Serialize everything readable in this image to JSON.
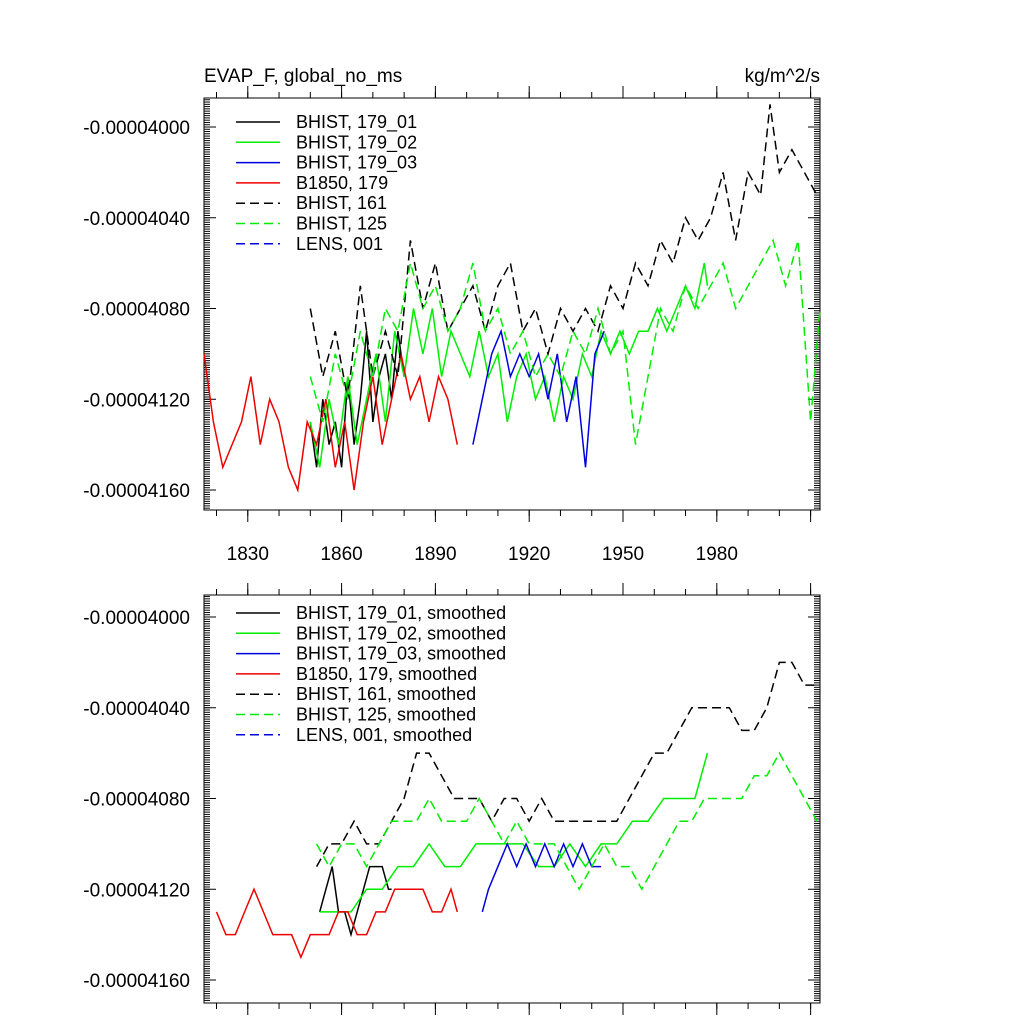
{
  "figure": {
    "title_left": "EVAP_F, global_no_ms",
    "title_right": "kg/m^2/s"
  },
  "chart_data": [
    {
      "type": "line",
      "panel": "top",
      "title": "EVAP_F, global_no_ms",
      "unit_label": "kg/m^2/s",
      "xlim": [
        1816,
        2013
      ],
      "ylim": [
        -4.17e-05,
        -3.99e-05
      ],
      "xticks": [
        1830,
        1860,
        1890,
        1920,
        1950,
        1980
      ],
      "xtick_labels": [
        "1830",
        "1860",
        "1890",
        "1920",
        "1950",
        "1980"
      ],
      "yticks": [
        -4e-05,
        -4.04e-05,
        -4.08e-05,
        -4.12e-05,
        -4.16e-05
      ],
      "ytick_labels": [
        "-0.00004000",
        "-0.00004040",
        "-0.00004080",
        "-0.00004120",
        "-0.00004160"
      ],
      "legend_position": "top-left",
      "series": [
        {
          "name": "BHIST, 179_01",
          "color": "#000000",
          "dash": "solid",
          "x": [
            1850,
            1852,
            1854,
            1856,
            1858,
            1860,
            1862,
            1864,
            1866,
            1868,
            1870,
            1872,
            1874,
            1876,
            1878,
            1880
          ],
          "y": [
            -4.13e-05,
            -4.15e-05,
            -4.12e-05,
            -4.14e-05,
            -4.13e-05,
            -4.15e-05,
            -4.11e-05,
            -4.14e-05,
            -4.12e-05,
            -4.09e-05,
            -4.13e-05,
            -4.11e-05,
            -4.1e-05,
            -4.12e-05,
            -4.09e-05,
            -4.11e-05
          ]
        },
        {
          "name": "BHIST, 179_02",
          "color": "#00ee00",
          "dash": "solid",
          "x": [
            1850,
            1853,
            1856,
            1859,
            1862,
            1865,
            1868,
            1871,
            1874,
            1877,
            1880,
            1883,
            1886,
            1889,
            1892,
            1895,
            1898,
            1901,
            1904,
            1907,
            1910,
            1913,
            1916,
            1919,
            1922,
            1925,
            1928,
            1931,
            1934,
            1937,
            1940,
            1943,
            1946,
            1949,
            1952,
            1955,
            1958,
            1961,
            1964,
            1967,
            1970,
            1973,
            1976,
            1977
          ],
          "y": [
            -4.13e-05,
            -4.15e-05,
            -4.12e-05,
            -4.14e-05,
            -4.11e-05,
            -4.14e-05,
            -4.12e-05,
            -4.1e-05,
            -4.13e-05,
            -4.09e-05,
            -4.11e-05,
            -4.08e-05,
            -4.1e-05,
            -4.08e-05,
            -4.11e-05,
            -4.09e-05,
            -4.1e-05,
            -4.11e-05,
            -4.09e-05,
            -4.11e-05,
            -4.1e-05,
            -4.13e-05,
            -4.11e-05,
            -4.1e-05,
            -4.12e-05,
            -4.11e-05,
            -4.13e-05,
            -4.11e-05,
            -4.12e-05,
            -4.1e-05,
            -4.11e-05,
            -4.09e-05,
            -4.1e-05,
            -4.09e-05,
            -4.1e-05,
            -4.09e-05,
            -4.09e-05,
            -4.08e-05,
            -4.09e-05,
            -4.08e-05,
            -4.07e-05,
            -4.08e-05,
            -4.06e-05,
            -4.07e-05
          ]
        },
        {
          "name": "BHIST, 179_03",
          "color": "#0000dd",
          "dash": "solid",
          "x": [
            1902,
            1905,
            1908,
            1911,
            1914,
            1917,
            1920,
            1923,
            1926,
            1929,
            1932,
            1935,
            1938,
            1941,
            1944
          ],
          "y": [
            -4.14e-05,
            -4.12e-05,
            -4.1e-05,
            -4.09e-05,
            -4.11e-05,
            -4.1e-05,
            -4.11e-05,
            -4.1e-05,
            -4.12e-05,
            -4.1e-05,
            -4.13e-05,
            -4.11e-05,
            -4.15e-05,
            -4.1e-05,
            -4.09e-05
          ]
        },
        {
          "name": "B1850, 179",
          "color": "#ee0000",
          "dash": "solid",
          "x": [
            1816,
            1819,
            1822,
            1825,
            1828,
            1831,
            1834,
            1837,
            1840,
            1843,
            1846,
            1849,
            1852,
            1855,
            1858,
            1861,
            1864,
            1867,
            1870,
            1873,
            1876,
            1879,
            1882,
            1885,
            1888,
            1891,
            1894,
            1897
          ],
          "y": [
            -4.1e-05,
            -4.13e-05,
            -4.15e-05,
            -4.14e-05,
            -4.13e-05,
            -4.11e-05,
            -4.14e-05,
            -4.12e-05,
            -4.13e-05,
            -4.15e-05,
            -4.16e-05,
            -4.13e-05,
            -4.14e-05,
            -4.12e-05,
            -4.15e-05,
            -4.13e-05,
            -4.16e-05,
            -4.13e-05,
            -4.11e-05,
            -4.14e-05,
            -4.12e-05,
            -4.1e-05,
            -4.12e-05,
            -4.11e-05,
            -4.13e-05,
            -4.11e-05,
            -4.12e-05,
            -4.14e-05
          ]
        },
        {
          "name": "BHIST, 161",
          "color": "#000000",
          "dash": "dashed",
          "x": [
            1850,
            1854,
            1858,
            1862,
            1866,
            1870,
            1874,
            1878,
            1882,
            1886,
            1890,
            1894,
            1898,
            1902,
            1906,
            1910,
            1914,
            1918,
            1922,
            1926,
            1930,
            1934,
            1938,
            1942,
            1946,
            1950,
            1954,
            1958,
            1962,
            1966,
            1970,
            1974,
            1978,
            1982,
            1986,
            1990,
            1994,
            1997,
            2000,
            2004,
            2008,
            2012
          ],
          "y": [
            -4.08e-05,
            -4.11e-05,
            -4.09e-05,
            -4.12e-05,
            -4.07e-05,
            -4.11e-05,
            -4.09e-05,
            -4.11e-05,
            -4.05e-05,
            -4.08e-05,
            -4.06e-05,
            -4.09e-05,
            -4.08e-05,
            -4.07e-05,
            -4.09e-05,
            -4.07e-05,
            -4.06e-05,
            -4.09e-05,
            -4.08e-05,
            -4.1e-05,
            -4.08e-05,
            -4.09e-05,
            -4.08e-05,
            -4.09e-05,
            -4.07e-05,
            -4.08e-05,
            -4.06e-05,
            -4.07e-05,
            -4.05e-05,
            -4.06e-05,
            -4.04e-05,
            -4.05e-05,
            -4.04e-05,
            -4.02e-05,
            -4.05e-05,
            -4.02e-05,
            -4.03e-05,
            -3.99e-05,
            -4.02e-05,
            -4.01e-05,
            -4.02e-05,
            -4.03e-05
          ]
        },
        {
          "name": "BHIST, 125",
          "color": "#00ee00",
          "dash": "dashed",
          "x": [
            1850,
            1854,
            1858,
            1862,
            1866,
            1870,
            1874,
            1878,
            1882,
            1886,
            1890,
            1894,
            1898,
            1902,
            1906,
            1910,
            1914,
            1918,
            1922,
            1926,
            1930,
            1934,
            1938,
            1942,
            1946,
            1950,
            1954,
            1958,
            1962,
            1966,
            1970,
            1974,
            1978,
            1982,
            1986,
            1990,
            1994,
            1998,
            2002,
            2006,
            2010,
            2013
          ],
          "y": [
            -4.11e-05,
            -4.13e-05,
            -4.1e-05,
            -4.12e-05,
            -4.09e-05,
            -4.11e-05,
            -4.08e-05,
            -4.09e-05,
            -4.06e-05,
            -4.08e-05,
            -4.07e-05,
            -4.09e-05,
            -4.08e-05,
            -4.06e-05,
            -4.09e-05,
            -4.08e-05,
            -4.1e-05,
            -4.09e-05,
            -4.11e-05,
            -4.1e-05,
            -4.11e-05,
            -4.09e-05,
            -4.1e-05,
            -4.08e-05,
            -4.1e-05,
            -4.09e-05,
            -4.14e-05,
            -4.11e-05,
            -4.08e-05,
            -4.09e-05,
            -4.07e-05,
            -4.08e-05,
            -4.07e-05,
            -4.06e-05,
            -4.08e-05,
            -4.07e-05,
            -4.06e-05,
            -4.05e-05,
            -4.07e-05,
            -4.05e-05,
            -4.13e-05,
            -4.08e-05
          ]
        }
      ]
    },
    {
      "type": "line",
      "panel": "bottom",
      "xlim": [
        1816,
        2013
      ],
      "ylim": [
        -4.17e-05,
        -3.99e-05
      ],
      "yticks": [
        -4e-05,
        -4.04e-05,
        -4.08e-05,
        -4.12e-05,
        -4.16e-05
      ],
      "ytick_labels": [
        "-0.00004000",
        "-0.00004040",
        "-0.00004080",
        "-0.00004120",
        "-0.00004160"
      ],
      "legend_position": "top-left",
      "series": [
        {
          "name": "BHIST, 179_01, smoothed",
          "color": "#000000",
          "dash": "solid",
          "x": [
            1853,
            1855,
            1857,
            1859,
            1861,
            1863,
            1865,
            1867,
            1869,
            1871,
            1873,
            1875,
            1876
          ],
          "y": [
            -4.13e-05,
            -4.12e-05,
            -4.11e-05,
            -4.13e-05,
            -4.13e-05,
            -4.14e-05,
            -4.13e-05,
            -4.12e-05,
            -4.11e-05,
            -4.11e-05,
            -4.11e-05,
            -4.12e-05,
            -4.12e-05
          ]
        },
        {
          "name": "BHIST, 179_02, smoothed",
          "color": "#00ee00",
          "dash": "solid",
          "x": [
            1853,
            1858,
            1863,
            1868,
            1873,
            1878,
            1883,
            1888,
            1893,
            1898,
            1903,
            1908,
            1913,
            1918,
            1923,
            1928,
            1933,
            1938,
            1943,
            1948,
            1953,
            1958,
            1963,
            1968,
            1973,
            1977
          ],
          "y": [
            -4.13e-05,
            -4.13e-05,
            -4.13e-05,
            -4.12e-05,
            -4.12e-05,
            -4.11e-05,
            -4.11e-05,
            -4.1e-05,
            -4.11e-05,
            -4.11e-05,
            -4.1e-05,
            -4.1e-05,
            -4.1e-05,
            -4.1e-05,
            -4.11e-05,
            -4.11e-05,
            -4.1e-05,
            -4.11e-05,
            -4.1e-05,
            -4.1e-05,
            -4.09e-05,
            -4.09e-05,
            -4.08e-05,
            -4.08e-05,
            -4.08e-05,
            -4.06e-05
          ]
        },
        {
          "name": "BHIST, 179_03, smoothed",
          "color": "#0000dd",
          "dash": "solid",
          "x": [
            1905,
            1907,
            1910,
            1913,
            1916,
            1919,
            1922,
            1925,
            1928,
            1931,
            1934,
            1937,
            1940,
            1943
          ],
          "y": [
            -4.13e-05,
            -4.12e-05,
            -4.11e-05,
            -4.1e-05,
            -4.11e-05,
            -4.1e-05,
            -4.11e-05,
            -4.1e-05,
            -4.11e-05,
            -4.1e-05,
            -4.11e-05,
            -4.1e-05,
            -4.11e-05,
            -4.11e-05
          ]
        },
        {
          "name": "B1850, 179, smoothed",
          "color": "#ee0000",
          "dash": "solid",
          "x": [
            1820,
            1823,
            1826,
            1829,
            1832,
            1835,
            1838,
            1841,
            1844,
            1847,
            1850,
            1853,
            1856,
            1859,
            1862,
            1865,
            1868,
            1871,
            1874,
            1877,
            1880,
            1883,
            1886,
            1889,
            1892,
            1895,
            1897
          ],
          "y": [
            -4.13e-05,
            -4.14e-05,
            -4.14e-05,
            -4.13e-05,
            -4.12e-05,
            -4.13e-05,
            -4.14e-05,
            -4.14e-05,
            -4.14e-05,
            -4.15e-05,
            -4.14e-05,
            -4.14e-05,
            -4.14e-05,
            -4.13e-05,
            -4.13e-05,
            -4.14e-05,
            -4.14e-05,
            -4.13e-05,
            -4.13e-05,
            -4.12e-05,
            -4.12e-05,
            -4.12e-05,
            -4.12e-05,
            -4.13e-05,
            -4.13e-05,
            -4.12e-05,
            -4.13e-05
          ]
        },
        {
          "name": "BHIST, 161, smoothed",
          "color": "#000000",
          "dash": "dashed",
          "x": [
            1852,
            1856,
            1860,
            1864,
            1868,
            1872,
            1876,
            1880,
            1884,
            1888,
            1892,
            1896,
            1900,
            1904,
            1908,
            1912,
            1916,
            1920,
            1924,
            1928,
            1932,
            1936,
            1940,
            1944,
            1948,
            1952,
            1956,
            1960,
            1964,
            1968,
            1972,
            1976,
            1980,
            1984,
            1988,
            1992,
            1996,
            2000,
            2004,
            2008,
            2012
          ],
          "y": [
            -4.11e-05,
            -4.1e-05,
            -4.1e-05,
            -4.09e-05,
            -4.1e-05,
            -4.1e-05,
            -4.09e-05,
            -4.08e-05,
            -4.06e-05,
            -4.06e-05,
            -4.07e-05,
            -4.08e-05,
            -4.08e-05,
            -4.08e-05,
            -4.09e-05,
            -4.08e-05,
            -4.08e-05,
            -4.09e-05,
            -4.08e-05,
            -4.09e-05,
            -4.09e-05,
            -4.09e-05,
            -4.09e-05,
            -4.09e-05,
            -4.09e-05,
            -4.08e-05,
            -4.07e-05,
            -4.06e-05,
            -4.06e-05,
            -4.05e-05,
            -4.04e-05,
            -4.04e-05,
            -4.04e-05,
            -4.04e-05,
            -4.05e-05,
            -4.05e-05,
            -4.04e-05,
            -4.02e-05,
            -4.02e-05,
            -4.03e-05,
            -4.03e-05
          ]
        },
        {
          "name": "BHIST, 125, smoothed",
          "color": "#00ee00",
          "dash": "dashed",
          "x": [
            1852,
            1856,
            1860,
            1864,
            1868,
            1872,
            1876,
            1880,
            1884,
            1888,
            1892,
            1896,
            1900,
            1904,
            1908,
            1912,
            1916,
            1920,
            1924,
            1928,
            1932,
            1936,
            1940,
            1944,
            1948,
            1952,
            1956,
            1960,
            1964,
            1968,
            1972,
            1976,
            1980,
            1984,
            1988,
            1992,
            1996,
            2000,
            2004,
            2008,
            2012
          ],
          "y": [
            -4.1e-05,
            -4.11e-05,
            -4.1e-05,
            -4.1e-05,
            -4.11e-05,
            -4.1e-05,
            -4.09e-05,
            -4.09e-05,
            -4.09e-05,
            -4.08e-05,
            -4.09e-05,
            -4.09e-05,
            -4.09e-05,
            -4.08e-05,
            -4.09e-05,
            -4.1e-05,
            -4.09e-05,
            -4.1e-05,
            -4.1e-05,
            -4.1e-05,
            -4.11e-05,
            -4.12e-05,
            -4.11e-05,
            -4.1e-05,
            -4.11e-05,
            -4.11e-05,
            -4.12e-05,
            -4.11e-05,
            -4.1e-05,
            -4.09e-05,
            -4.09e-05,
            -4.08e-05,
            -4.08e-05,
            -4.08e-05,
            -4.08e-05,
            -4.07e-05,
            -4.07e-05,
            -4.06e-05,
            -4.07e-05,
            -4.08e-05,
            -4.09e-05
          ]
        }
      ]
    }
  ],
  "legend_samples": [
    {
      "name": "LENS, 001",
      "color": "#0000dd",
      "dash": "dashed"
    },
    {
      "name": "LENS, 001, smoothed",
      "color": "#0000dd",
      "dash": "dashed"
    }
  ]
}
